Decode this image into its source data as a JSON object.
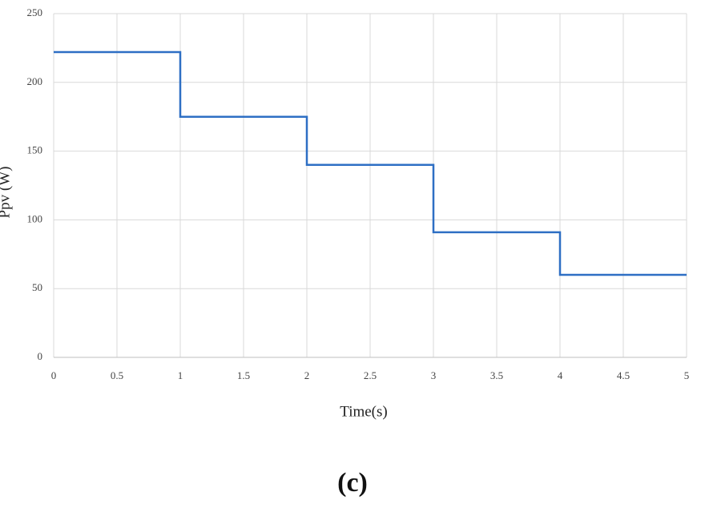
{
  "chart_data": {
    "type": "line",
    "x_label": "Time(s)",
    "y_label": "Ppv (W)",
    "caption": "(c)",
    "x": [
      0,
      1,
      1,
      2,
      2,
      3,
      3,
      4,
      4,
      5
    ],
    "series": [
      {
        "color": "#2e6fc4",
        "values": [
          222,
          222,
          175,
          175,
          140,
          140,
          91,
          91,
          60,
          60
        ]
      }
    ],
    "xlim": [
      0,
      5
    ],
    "xticks": [
      0,
      0.5,
      1,
      1.5,
      2,
      2.5,
      3,
      3.5,
      4,
      4.5,
      5
    ],
    "ylim": [
      0,
      250
    ],
    "yticks": [
      0,
      50,
      100,
      150,
      200,
      250
    ],
    "grid": true
  }
}
